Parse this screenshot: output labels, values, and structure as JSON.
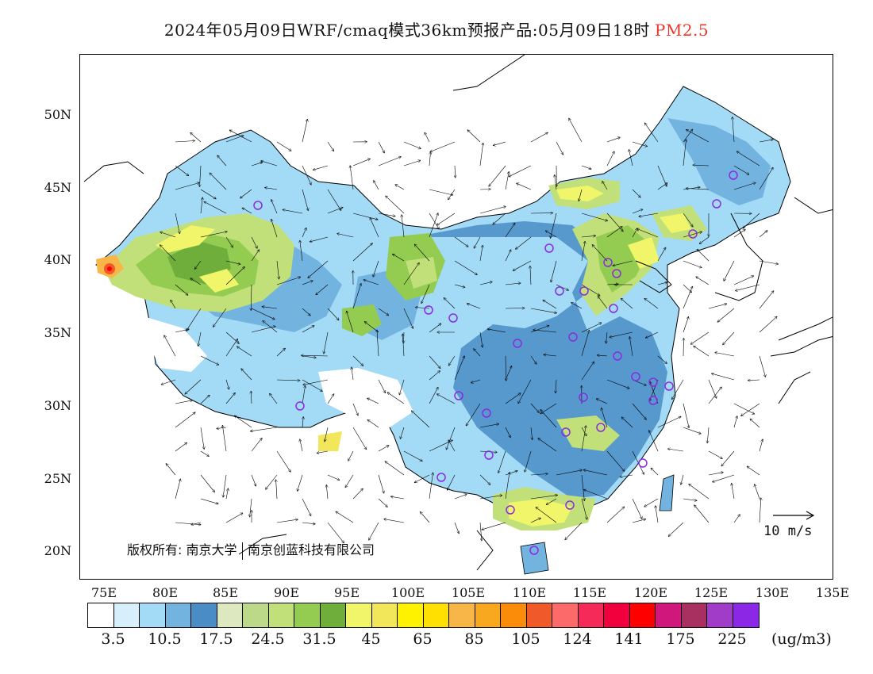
{
  "title": {
    "main": "2024年05月09日WRF/cmaq模式36km预报产品:05月09日18时",
    "variable": "PM2.5"
  },
  "axes": {
    "lat_labels": [
      "50N",
      "45N",
      "40N",
      "35N",
      "30N",
      "25N",
      "20N"
    ],
    "lon_labels": [
      "75E",
      "80E",
      "85E",
      "90E",
      "95E",
      "100E",
      "105E",
      "110E",
      "115E",
      "120E",
      "125E",
      "130E",
      "135E"
    ]
  },
  "copyright": {
    "prefix": "版权所有:",
    "org1": "南京大学",
    "org2": "南京创蓝科技有限公司"
  },
  "wind_reference": {
    "label": "10 m/s"
  },
  "legend": {
    "unit": "(ug/m3)",
    "tick_labels": [
      "3.5",
      "10.5",
      "17.5",
      "24.5",
      "31.5",
      "45",
      "65",
      "85",
      "105",
      "124",
      "141",
      "175",
      "225"
    ],
    "colors": [
      "#ffffff",
      "#d6effa",
      "#a3daf5",
      "#73b3e0",
      "#4a8cc6",
      "#dde8c0",
      "#bcd98a",
      "#c2e07a",
      "#93cc50",
      "#6fae3a",
      "#f0f56a",
      "#f2e65a",
      "#fff200",
      "#ffe000",
      "#f8b548",
      "#f8a81e",
      "#fa8c0a",
      "#f05a28",
      "#fc6a6a",
      "#f52a58",
      "#f0003c",
      "#ff0000",
      "#d0187c",
      "#a83060",
      "#a03cc8",
      "#8a28e6"
    ]
  },
  "stations": {
    "marker": "circle",
    "color": "#8a2be2"
  }
}
